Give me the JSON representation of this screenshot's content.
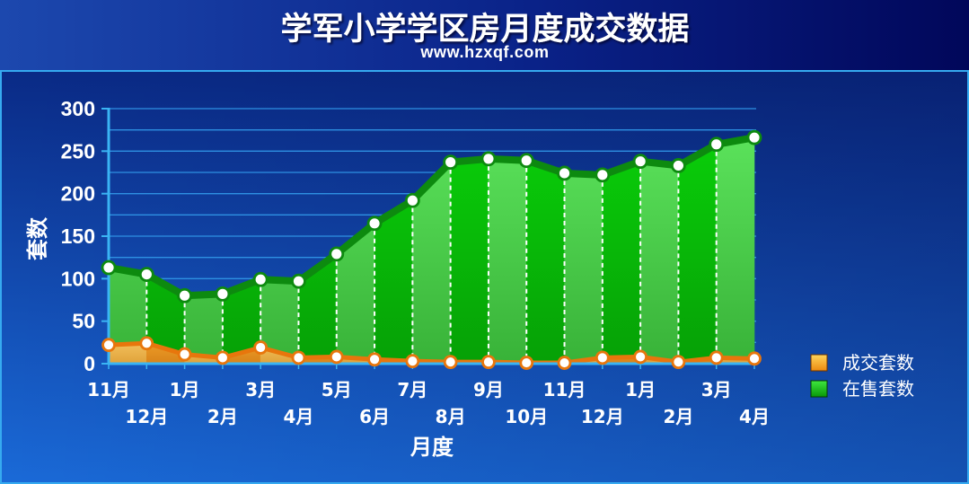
{
  "chart_data": {
    "type": "area",
    "title": "学军小学学区房月度成交数据",
    "subtitle": "www.hzxqf.com",
    "xlabel": "月度",
    "ylabel": "套数",
    "ylim": [
      0,
      300
    ],
    "yticks": [
      0,
      50,
      100,
      150,
      200,
      250,
      300
    ],
    "grid": true,
    "legend": "right",
    "categories": [
      "11月",
      "12月",
      "1月",
      "2月",
      "3月",
      "4月",
      "5月",
      "6月",
      "7月",
      "8月",
      "9月",
      "10月",
      "11月",
      "12月",
      "1月",
      "2月",
      "3月",
      "4月"
    ],
    "series": [
      {
        "name": "成交套数",
        "color": "#e8760c",
        "values": [
          22,
          24,
          11,
          7,
          19,
          7,
          8,
          5,
          3,
          2,
          2,
          1,
          1,
          7,
          8,
          2,
          7,
          6
        ]
      },
      {
        "name": "在售套数",
        "color": "#0d8a0f",
        "values": [
          113,
          105,
          80,
          82,
          99,
          97,
          129,
          165,
          192,
          237,
          241,
          239,
          224,
          222,
          238,
          233,
          258,
          266
        ]
      }
    ]
  }
}
